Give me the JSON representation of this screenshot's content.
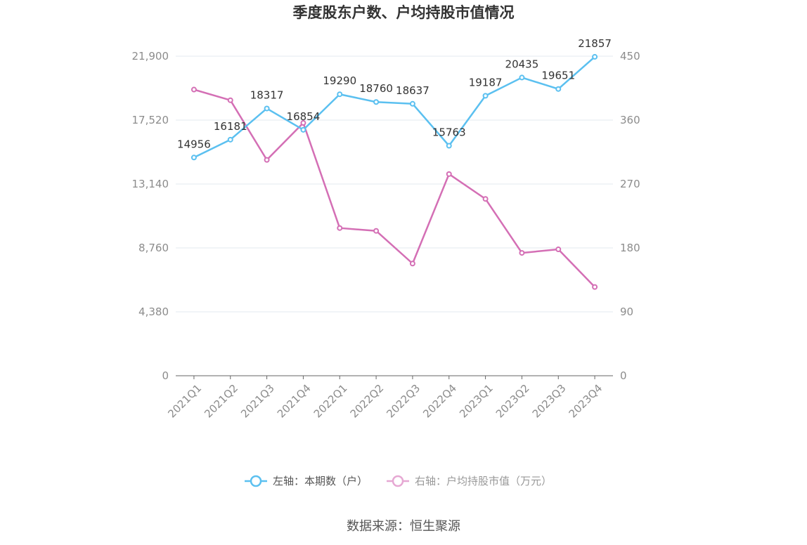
{
  "chart_data": {
    "type": "line",
    "title": "季度股东户数、户均持股市值情况",
    "categories": [
      "2021Q1",
      "2021Q2",
      "2021Q3",
      "2021Q4",
      "2022Q1",
      "2022Q2",
      "2022Q3",
      "2022Q4",
      "2023Q1",
      "2023Q2",
      "2023Q3",
      "2023Q4"
    ],
    "left_axis": {
      "ticks": [
        "0",
        "4,380",
        "8,760",
        "13,140",
        "17,520",
        "21,900"
      ],
      "ylim": [
        0,
        21900
      ]
    },
    "right_axis": {
      "ticks": [
        "0",
        "90",
        "180",
        "270",
        "360",
        "450"
      ],
      "ylim": [
        0,
        450
      ]
    },
    "series": [
      {
        "name": "左轴：本期数（户）",
        "axis": "left",
        "color": "#5bc0f0",
        "values": [
          14956,
          16181,
          18317,
          16854,
          19290,
          18760,
          18637,
          15763,
          19187,
          20435,
          19651,
          21857
        ],
        "labels": [
          "14956",
          "16181",
          "18317",
          "16854",
          "19290",
          "18760",
          "18637",
          "15763",
          "19187",
          "20435",
          "19651",
          "21857"
        ]
      },
      {
        "name": "右轴：户均持股市值（万元）",
        "axis": "right",
        "color": "#d46fb5",
        "values": [
          403,
          388,
          304,
          356,
          208,
          204,
          158,
          284,
          249,
          173,
          178,
          125
        ]
      }
    ],
    "grid": true,
    "legend": "bottom"
  },
  "source": "数据来源：恒生聚源"
}
